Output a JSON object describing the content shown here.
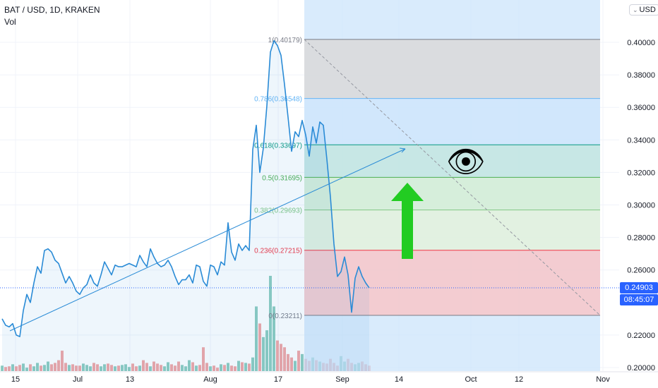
{
  "header": {
    "symbol": "BAT / USD, 1D, KRAKEN",
    "volume_label": "Vol"
  },
  "currency_button": {
    "label": "USD"
  },
  "price_tag": {
    "label": "0.24903",
    "value": 0.24903
  },
  "countdown_tag": {
    "label": "08:45:07"
  },
  "colors": {
    "line": "#2a8bd6",
    "vol_up": "#8fcdc0",
    "vol_down": "#f1a7a6",
    "accent": "#2962ff",
    "arrow": "#22cc22"
  },
  "icons": {
    "eye": "eye-icon",
    "arrow": "up-arrow-icon"
  },
  "chart_data": {
    "type": "line",
    "title": "BAT / USD, 1D, KRAKEN",
    "xlabel": "",
    "ylabel": "",
    "x_ticks": [
      "15",
      "Jul",
      "13",
      "Aug",
      "17",
      "Sep",
      "14",
      "Oct",
      "12",
      "Nov"
    ],
    "y_ticks": [
      "0.40000",
      "0.38000",
      "0.36000",
      "0.34000",
      "0.32000",
      "0.30000",
      "0.28000",
      "0.26000",
      "0.22000",
      "0.20000"
    ],
    "ylim": [
      0.2,
      0.41
    ],
    "grid": true,
    "last_price": 0.24903,
    "series": [
      {
        "values": [
          0.23,
          0.226,
          0.225,
          0.227,
          0.22,
          0.219,
          0.235,
          0.245,
          0.24,
          0.252,
          0.262,
          0.258,
          0.272,
          0.273,
          0.271,
          0.266,
          0.264,
          0.258,
          0.252,
          0.256,
          0.252,
          0.247,
          0.245,
          0.249,
          0.251,
          0.257,
          0.252,
          0.25,
          0.257,
          0.265,
          0.261,
          0.257,
          0.263,
          0.262,
          0.262,
          0.263,
          0.264,
          0.263,
          0.262,
          0.269,
          0.265,
          0.262,
          0.273,
          0.268,
          0.264,
          0.262,
          0.263,
          0.266,
          0.262,
          0.256,
          0.251,
          0.254,
          0.254,
          0.257,
          0.252,
          0.263,
          0.262,
          0.253,
          0.25,
          0.263,
          0.262,
          0.257,
          0.265,
          0.263,
          0.289,
          0.271,
          0.266,
          0.276,
          0.272,
          0.275,
          0.272,
          0.334,
          0.349,
          0.32,
          0.335,
          0.361,
          0.394,
          0.401,
          0.398,
          0.392,
          0.374,
          0.354,
          0.333,
          0.345,
          0.342,
          0.352,
          0.343,
          0.33,
          0.348,
          0.338,
          0.351,
          0.349,
          0.328,
          0.305,
          0.276,
          0.256,
          0.259,
          0.268,
          0.257,
          0.234,
          0.255,
          0.262,
          0.256,
          0.252,
          0.249
        ]
      }
    ],
    "volume": [
      8,
      6,
      7,
      10,
      7,
      9,
      11,
      5,
      10,
      7,
      12,
      8,
      9,
      14,
      10,
      12,
      16,
      30,
      12,
      9,
      10,
      8,
      8,
      11,
      9,
      7,
      12,
      10,
      7,
      10,
      11,
      9,
      7,
      8,
      9,
      10,
      6,
      11,
      7,
      8,
      16,
      12,
      7,
      14,
      11,
      9,
      7,
      13,
      10,
      8,
      14,
      9,
      7,
      16,
      13,
      8,
      9,
      35,
      12,
      7,
      8,
      5,
      10,
      9,
      12,
      8,
      7,
      15,
      13,
      12,
      11,
      20,
      95,
      70,
      50,
      60,
      140,
      95,
      45,
      40,
      35,
      25,
      20,
      15,
      30,
      25,
      18,
      15,
      20,
      16,
      14,
      12,
      11,
      18,
      12,
      8,
      22,
      14,
      18,
      12,
      10,
      12,
      14,
      10,
      8
    ],
    "fibonacci": [
      {
        "label": "1(0.40179)",
        "value": 0.40179
      },
      {
        "label": "0.786(0.36548)",
        "value": 0.36548
      },
      {
        "label": "0.618(0.33697)",
        "value": 0.33697
      },
      {
        "label": "0.5(0.31695)",
        "value": 0.31695
      },
      {
        "label": "0.382(0.29693)",
        "value": 0.29693
      },
      {
        "label": "0.236(0.27215)",
        "value": 0.27215
      },
      {
        "label": "0(0.23211)",
        "value": 0.23211
      }
    ]
  }
}
